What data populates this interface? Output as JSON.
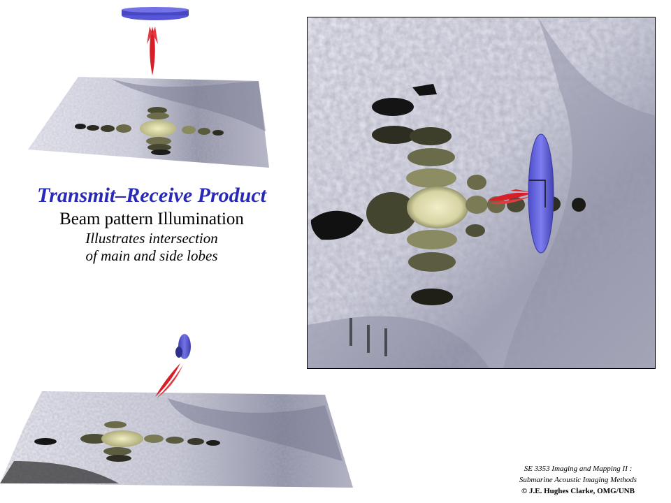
{
  "colors": {
    "title": "#2929b8",
    "text": "#000000",
    "seafloor_light": "#e9e9f1",
    "seafloor_dark": "#6d6f85",
    "shadow": "#1a1a1a",
    "illumination": "#e3e0b0",
    "illumination_dark": "#53543a",
    "beam": "#e0202a",
    "transducer": "#5a5ad8"
  },
  "text": {
    "title": "Transmit–Receive Product",
    "subtitle": "Beam pattern Illumination",
    "desc_line1": "Illustrates intersection",
    "desc_line2": "of main and side lobes"
  },
  "credits": {
    "line1": "SE 3353 Imaging and Mapping II :",
    "line2": "Submarine Acoustic Imaging Methods",
    "line3": "© J.E. Hughes Clarke, OMG/UNB"
  },
  "panels": [
    {
      "name": "perspective-top",
      "icons": [
        "transducer-icon",
        "beam-lobe-icon",
        "seafloor-surface"
      ]
    },
    {
      "name": "plan-view",
      "icons": [
        "transducer-icon",
        "beam-lobe-icon",
        "seafloor-surface"
      ]
    },
    {
      "name": "perspective-bottom",
      "icons": [
        "transducer-icon",
        "beam-lobe-icon",
        "seafloor-surface"
      ]
    }
  ]
}
